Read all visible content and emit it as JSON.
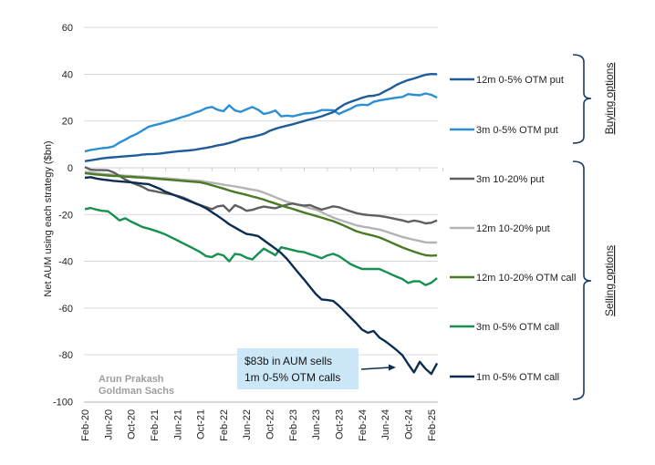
{
  "chart_data": {
    "type": "line",
    "title": "",
    "xlabel": "",
    "ylabel": "Net AUM using each strategy ($bn)",
    "ylim": [
      -100,
      60
    ],
    "yticks": [
      60,
      40,
      20,
      0,
      -20,
      -40,
      -60,
      -80,
      -100
    ],
    "grid": true,
    "legend_placement": "right",
    "x_start": "Feb-20",
    "x_frequency": "monthly",
    "x_end": "Mar-25",
    "xtick_labels": [
      "Feb-20",
      "Jun-20",
      "Oct-20",
      "Feb-21",
      "Jun-21",
      "Oct-21",
      "Feb-22",
      "Jun-22",
      "Oct-22",
      "Feb-23",
      "Jun-23",
      "Oct-23",
      "Feb-24",
      "Jun-24",
      "Oct-24",
      "Feb-25"
    ],
    "series": [
      {
        "name": "12m 0-5% OTM put",
        "color": "#1f5c99",
        "group": "buying",
        "values": [
          2.8,
          3.2,
          3.6,
          4.0,
          4.3,
          4.5,
          4.7,
          4.9,
          5.1,
          5.3,
          5.6,
          5.8,
          5.9,
          6.1,
          6.4,
          6.7,
          7.0,
          7.2,
          7.4,
          7.7,
          8.1,
          8.5,
          9.0,
          9.6,
          10.0,
          10.6,
          11.3,
          12.3,
          12.8,
          13.2,
          13.8,
          14.5,
          15.8,
          16.7,
          17.4,
          18.0,
          18.6,
          19.3,
          20.0,
          20.7,
          21.3,
          22.0,
          22.9,
          23.8,
          25.6,
          27.2,
          28.2,
          29.0,
          29.9,
          30.6,
          30.8,
          31.4,
          32.8,
          34.0,
          35.5,
          36.6,
          37.5,
          38.2,
          39.0,
          39.8,
          40.1,
          40.0
        ]
      },
      {
        "name": "3m 0-5% OTM put",
        "color": "#2b8fd4",
        "group": "buying",
        "values": [
          7.0,
          7.6,
          8.0,
          8.4,
          8.6,
          9.2,
          10.8,
          12.0,
          13.4,
          14.5,
          16.0,
          17.5,
          18.2,
          18.8,
          19.5,
          20.2,
          21.0,
          21.8,
          22.5,
          23.5,
          24.3,
          25.5,
          26.0,
          24.8,
          24.2,
          26.7,
          24.5,
          23.9,
          25.0,
          26.0,
          24.8,
          23.0,
          23.6,
          24.5,
          22.0,
          22.3,
          22.0,
          22.6,
          23.2,
          23.4,
          23.8,
          24.7,
          24.7,
          24.6,
          23.0,
          24.2,
          25.2,
          26.6,
          27.0,
          26.8,
          28.2,
          28.8,
          29.2,
          29.6,
          30.0,
          30.3,
          31.5,
          31.2,
          31.0,
          31.8,
          31.2,
          30.0
        ]
      },
      {
        "name": "3m 10-20% put",
        "color": "#5f5f5f",
        "group": "selling",
        "values": [
          0.3,
          -0.8,
          -1.0,
          -1.0,
          -1.1,
          -2.0,
          -3.5,
          -5.0,
          -6.2,
          -7.2,
          -8.2,
          -9.5,
          -10.0,
          -10.5,
          -11.0,
          -11.4,
          -12.0,
          -12.7,
          -13.8,
          -15.0,
          -16.0,
          -16.8,
          -17.7,
          -16.5,
          -16.2,
          -18.6,
          -16.0,
          -17.0,
          -18.4,
          -18.0,
          -17.2,
          -16.6,
          -17.0,
          -17.3,
          -16.5,
          -15.8,
          -15.3,
          -15.8,
          -16.2,
          -16.0,
          -17.0,
          -17.9,
          -17.2,
          -16.5,
          -16.9,
          -17.8,
          -18.6,
          -19.4,
          -19.9,
          -20.2,
          -20.4,
          -20.6,
          -21.0,
          -21.5,
          -22.0,
          -22.5,
          -23.2,
          -22.6,
          -23.0,
          -23.8,
          -23.5,
          -22.5
        ]
      },
      {
        "name": "12m 10-20% put",
        "color": "#b4b4b4",
        "group": "selling",
        "values": [
          -1.7,
          -2.0,
          -2.3,
          -2.6,
          -2.8,
          -3.0,
          -3.2,
          -3.4,
          -3.5,
          -3.7,
          -3.8,
          -4.0,
          -4.2,
          -4.4,
          -4.5,
          -4.7,
          -4.9,
          -5.1,
          -5.3,
          -5.4,
          -5.6,
          -6.0,
          -6.4,
          -6.8,
          -7.2,
          -7.6,
          -8.0,
          -8.4,
          -8.9,
          -9.4,
          -9.8,
          -10.6,
          -11.6,
          -12.6,
          -13.6,
          -14.6,
          -15.3,
          -15.9,
          -16.6,
          -17.3,
          -17.9,
          -19.0,
          -20.2,
          -21.3,
          -22.2,
          -23.0,
          -23.8,
          -24.6,
          -25.1,
          -25.5,
          -26.0,
          -26.4,
          -27.2,
          -28.0,
          -28.8,
          -29.6,
          -30.2,
          -30.8,
          -31.3,
          -31.9,
          -32.0,
          -32.0
        ]
      },
      {
        "name": "12m 10-20% OTM call",
        "color": "#4b7a26",
        "group": "selling",
        "values": [
          -2.3,
          -2.6,
          -2.9,
          -3.1,
          -3.3,
          -3.5,
          -3.6,
          -3.8,
          -3.9,
          -4.1,
          -4.2,
          -4.4,
          -4.6,
          -4.8,
          -5.0,
          -5.2,
          -5.4,
          -5.6,
          -5.8,
          -6.0,
          -6.2,
          -6.8,
          -7.5,
          -8.2,
          -8.9,
          -9.7,
          -10.4,
          -11.0,
          -11.6,
          -12.3,
          -12.9,
          -13.6,
          -14.5,
          -15.3,
          -16.1,
          -16.9,
          -17.6,
          -18.4,
          -19.2,
          -19.9,
          -20.6,
          -21.3,
          -22.1,
          -22.8,
          -23.8,
          -24.9,
          -26.0,
          -27.1,
          -27.9,
          -28.5,
          -29.1,
          -29.8,
          -30.8,
          -31.9,
          -33.0,
          -34.1,
          -35.0,
          -35.9,
          -36.7,
          -37.4,
          -37.6,
          -37.5
        ]
      },
      {
        "name": "3m 0-5% OTM call",
        "color": "#16904f",
        "group": "selling",
        "values": [
          -17.7,
          -17.2,
          -17.9,
          -18.4,
          -18.6,
          -20.5,
          -22.5,
          -21.6,
          -23.0,
          -24.2,
          -25.4,
          -26.0,
          -26.8,
          -27.6,
          -28.6,
          -29.8,
          -31.0,
          -32.3,
          -33.5,
          -34.8,
          -36.1,
          -37.8,
          -38.2,
          -36.8,
          -37.5,
          -40.0,
          -36.8,
          -37.2,
          -38.5,
          -39.2,
          -36.8,
          -34.6,
          -36.0,
          -37.4,
          -34.0,
          -34.6,
          -35.2,
          -35.8,
          -36.1,
          -37.0,
          -37.8,
          -38.7,
          -37.5,
          -36.8,
          -37.8,
          -39.5,
          -41.2,
          -42.3,
          -43.3,
          -43.3,
          -43.3,
          -43.3,
          -44.4,
          -45.5,
          -46.6,
          -47.6,
          -49.3,
          -48.5,
          -48.6,
          -50.2,
          -49.2,
          -47.2
        ]
      },
      {
        "name": "1m 0-5% OTM call",
        "color": "#0c2d52",
        "group": "selling",
        "values": [
          -4.3,
          -4.0,
          -4.6,
          -5.0,
          -5.3,
          -5.6,
          -5.8,
          -6.0,
          -6.2,
          -6.5,
          -6.8,
          -7.0,
          -8.0,
          -9.0,
          -10.3,
          -11.2,
          -12.2,
          -13.2,
          -14.1,
          -15.1,
          -16.1,
          -17.3,
          -19.0,
          -20.6,
          -22.3,
          -24.2,
          -25.6,
          -27.0,
          -28.3,
          -28.7,
          -29.2,
          -31.0,
          -32.8,
          -34.6,
          -36.5,
          -39.0,
          -42.0,
          -45.0,
          -47.9,
          -51.0,
          -54.0,
          -56.3,
          -56.6,
          -57.0,
          -59.0,
          -61.5,
          -64.0,
          -66.5,
          -69.2,
          -70.6,
          -69.8,
          -72.6,
          -74.2,
          -76.0,
          -78.0,
          -80.2,
          -84.0,
          -87.5,
          -83.0,
          -86.0,
          -88.2,
          -83.6
        ]
      }
    ],
    "groups": {
      "buying": "Buying options",
      "selling": "Selling options"
    },
    "annotation": {
      "line1": "$83b in AUM sells",
      "line2": "1m 0-5% OTM calls",
      "box_color": "#cce7f8"
    },
    "source": {
      "line1": "Arun Prakash",
      "line2": "Goldman Sachs"
    }
  }
}
